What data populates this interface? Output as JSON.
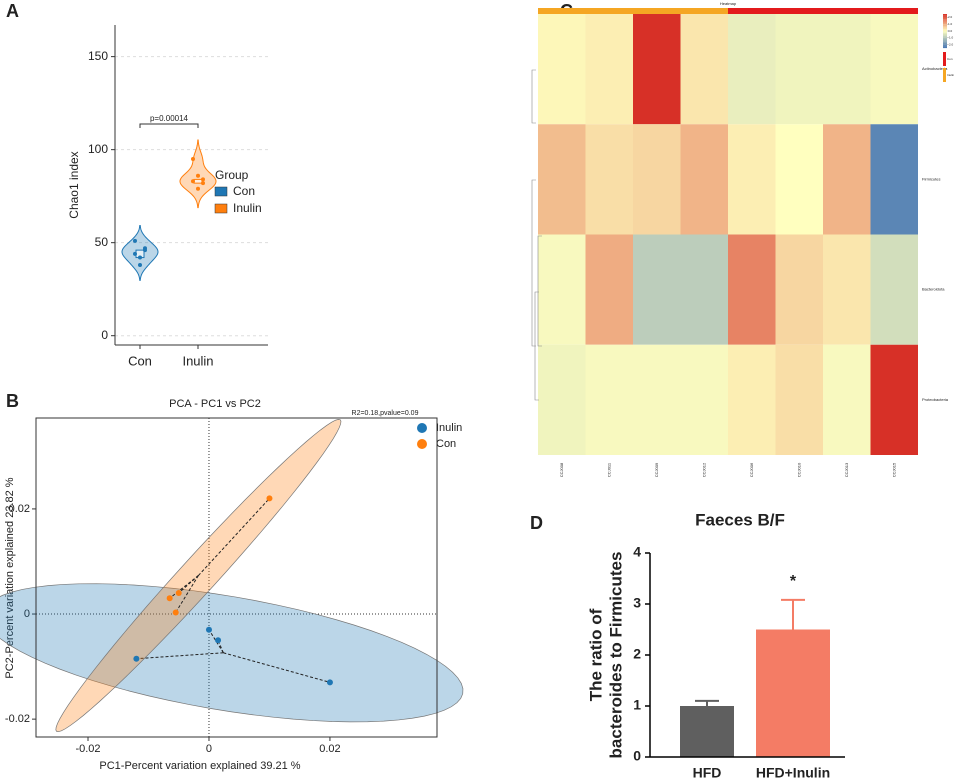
{
  "chart_data": [
    {
      "type": "violin",
      "label": "A",
      "ylabel": "Chao1 index",
      "categories": [
        "Con",
        "Inulin"
      ],
      "series": [
        {
          "name": "Con",
          "color": "#1f77b4",
          "values": [
            44,
            42,
            47,
            51,
            38,
            46
          ]
        },
        {
          "name": "Inulin",
          "color": "#ff7f0e",
          "values": [
            95,
            86,
            84,
            83,
            79,
            82
          ]
        }
      ],
      "legend_title": "Group",
      "annotation": "p=0.00014",
      "ylim": [
        -5,
        167
      ],
      "yticks": [
        0,
        50,
        100,
        150
      ],
      "grid": true
    },
    {
      "type": "scatter",
      "label": "B",
      "title": "PCA - PC1 vs PC2",
      "annotation": "R2=0.18,pvalue=0.09",
      "xlabel": "PC1-Percent variation explained 39.21 %",
      "ylabel": "PC2-Percent variation explained 23.82 %",
      "series": [
        {
          "name": "Inulin",
          "color": "#1f77b4",
          "x": [
            0,
            0.0015,
            -0.012,
            0.02
          ],
          "y": [
            -0.003,
            -0.005,
            -0.0085,
            -0.013
          ]
        },
        {
          "name": "Con",
          "color": "#ff7f0e",
          "x": [
            0.01,
            -0.0065,
            -0.005,
            -0.0055
          ],
          "y": [
            0.022,
            0.003,
            0.004,
            0.0003
          ]
        }
      ],
      "xlim": [
        -0.0286,
        0.0377
      ],
      "ylim": [
        -0.0234,
        0.0373
      ],
      "xticks": [
        -0.02,
        0,
        0.02
      ],
      "yticks": [
        -0.02,
        0,
        0.02
      ]
    },
    {
      "type": "heatmap",
      "label": "C",
      "title": "Heatmap",
      "rows": [
        "Actinobacteria",
        "Firmicutes",
        "Bacteroidota",
        "Proteobacteria"
      ],
      "columns": [
        "CCJ008",
        "CCJ011",
        "CCJ009",
        "CCJ012",
        "CCJ006",
        "CCJ010",
        "CCJ013",
        "CCJ015"
      ],
      "column_groups": [
        "Inulin",
        "Inulin",
        "Inulin",
        "Inulin",
        "Con",
        "Con",
        "Con",
        "Con"
      ],
      "values": [
        [
          0.1,
          0.2,
          2.5,
          0.3,
          -0.3,
          -0.2,
          -0.2,
          -0.1
        ],
        [
          0.8,
          0.4,
          0.5,
          0.9,
          0.2,
          0.0,
          0.9,
          -2.2
        ],
        [
          -0.1,
          1.0,
          -0.9,
          -0.9,
          1.5,
          0.5,
          0.3,
          -0.6
        ],
        [
          -0.2,
          -0.1,
          -0.1,
          -0.1,
          0.2,
          0.4,
          -0.1,
          2.5
        ]
      ],
      "colorscale": [
        "#4575b4",
        "#ffffbf",
        "#d73027"
      ],
      "zlim": [
        -2.5,
        2.5
      ],
      "zticks": [
        {
          "value": 2,
          "label": "2.0"
        },
        {
          "value": 1,
          "label": "1.0"
        },
        {
          "value": 0,
          "label": "0.0"
        },
        {
          "value": -1,
          "label": "-1.0"
        },
        {
          "value": -2,
          "label": "-2.0"
        }
      ],
      "legend": [
        {
          "name": "Con",
          "color": "#e31a1c"
        },
        {
          "name": "Inulin",
          "color": "#f5a623"
        }
      ]
    },
    {
      "type": "bar",
      "label": "D",
      "title": "Faeces B/F",
      "ylabel": [
        "The ratio of",
        "bacteroides to Firmicutes"
      ],
      "categories": [
        "HFD",
        "HFD+Inulin"
      ],
      "values": [
        1.0,
        2.5
      ],
      "errors": [
        0.1,
        0.58
      ],
      "colors": [
        "#5f5f5f",
        "#f47c65"
      ],
      "annotation": "*",
      "ylim": [
        0,
        4
      ],
      "yticks": [
        0,
        1,
        2,
        3,
        4
      ]
    }
  ]
}
